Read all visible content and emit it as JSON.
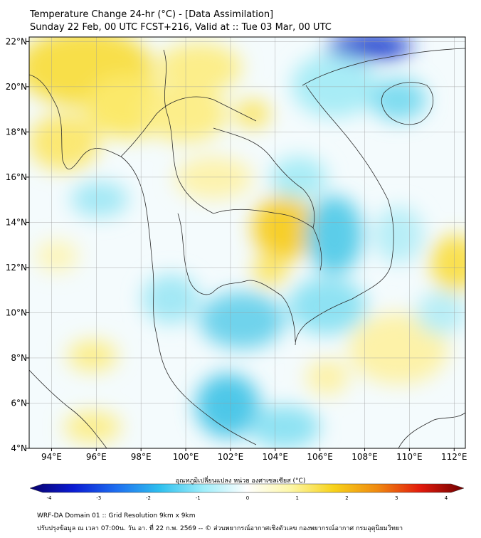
{
  "header": {
    "title": "Temperature Change 24-hr (°C) - [Data Assimilation]",
    "subtitle": "Sunday 22 Feb, 00 UTC FCST+216, Valid at :: Tue 03 Mar, 00 UTC"
  },
  "map": {
    "lon_range": [
      93,
      112.5
    ],
    "lat_range": [
      4,
      22.2
    ],
    "x_ticks": [
      "94°E",
      "96°E",
      "98°E",
      "100°E",
      "102°E",
      "104°E",
      "106°E",
      "108°E",
      "110°E",
      "112°E"
    ],
    "y_ticks": [
      "22°N",
      "20°N",
      "18°N",
      "16°N",
      "14°N",
      "12°N",
      "10°N",
      "8°N",
      "6°N",
      "4°N"
    ],
    "grid": true
  },
  "colorbar": {
    "title": "อุณหภูมิเปลี่ยนแปลง หน่วย องศาเซลเซียส (°C)",
    "ticks": [
      "-4",
      "-3",
      "-2",
      "-1",
      "0",
      "1",
      "2",
      "3",
      "4"
    ],
    "range": [
      -4,
      4
    ],
    "colors": [
      "#08006b",
      "#0b1bd3",
      "#1e6ff0",
      "#2fc0ee",
      "#9feefb",
      "#ffffff",
      "#fdf7a8",
      "#f7d21a",
      "#f08a10",
      "#e21a0c",
      "#6e0000"
    ]
  },
  "footer": {
    "line1": "WRF-DA Domain 01 :: Grid Resolution 9km x 9km",
    "line2": "ปรับปรุงข้อมูล ณ เวลา 07:00น. วัน อา. ที่ 22 ก.พ. 2569 -- © ส่วนพยากรณ์อากาศเชิงตัวเลข กองพยากรณ์อากาศ กรมอุตุนิยมวิทยา"
  }
}
